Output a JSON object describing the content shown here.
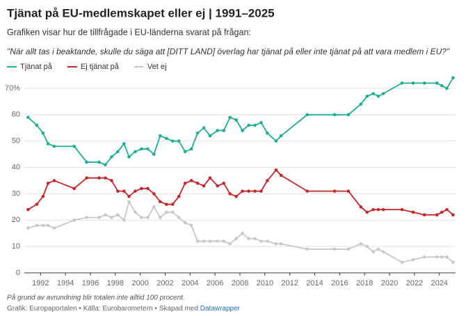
{
  "chart_data": {
    "type": "line",
    "title": "Tjänat på EU-medlemskapet eller ej | 1991–2025",
    "subtitle": "Grafiken visar hur de tillfrågade i EU-länderna svarat på frågan:",
    "question": "\"När allt tas i beaktande, skulle du säga att [DITT LAND] överlag har tjänat på eller inte tjänat på att vara medlem i EU?\"",
    "note": "På grund av avrundning blir totalen inte alltid 100 procent.",
    "source": "Grafik: Europaportalen • Källa: Eurobarometern • Skapad med",
    "source_link": "Datawrapper",
    "x": [
      1991.0,
      1991.7,
      1992.2,
      1992.6,
      1993.1,
      1994.7,
      1995.7,
      1996.7,
      1997.2,
      1997.7,
      1998.2,
      1998.7,
      1999.1,
      1999.6,
      2000.1,
      2000.6,
      2001.1,
      2001.6,
      2002.1,
      2002.6,
      2003.1,
      2003.6,
      2004.1,
      2004.6,
      2005.1,
      2005.6,
      2006.2,
      2006.7,
      2007.2,
      2007.7,
      2008.2,
      2008.7,
      2009.2,
      2009.7,
      2010.2,
      2010.9,
      2011.3,
      2013.4,
      2015.6,
      2016.7,
      2017.7,
      2018.2,
      2018.7,
      2019.1,
      2019.5,
      2021.0,
      2021.9,
      2022.8,
      2023.8,
      2024.2,
      2024.6,
      2025.1
    ],
    "series": [
      {
        "name": "Tjänat på",
        "color": "#1fae90",
        "values": [
          59,
          56,
          53,
          49,
          48,
          48,
          42,
          42,
          41,
          44,
          46,
          49,
          44,
          46,
          47,
          47,
          45,
          52,
          51,
          50,
          50,
          46,
          47,
          53,
          55,
          52,
          54,
          54,
          59,
          58,
          54,
          56,
          56,
          57,
          53,
          50,
          52,
          60,
          60,
          60,
          64,
          67,
          68,
          67,
          68,
          72,
          72,
          72,
          72,
          71,
          70,
          74
        ]
      },
      {
        "name": "Ej tjänat på",
        "color": "#c1272d",
        "values": [
          24,
          26,
          29,
          34,
          35,
          32,
          36,
          36,
          36,
          35,
          31,
          31,
          29,
          31,
          32,
          32,
          30,
          27,
          26,
          26,
          29,
          34,
          35,
          34,
          33,
          36,
          33,
          34,
          30,
          29,
          31,
          31,
          31,
          31,
          35,
          39,
          37,
          31,
          31,
          31,
          25,
          23,
          24,
          24,
          24,
          24,
          23,
          22,
          22,
          23,
          24,
          22
        ]
      },
      {
        "name": "Vet ej",
        "color": "#c8c8c8",
        "values": [
          17,
          18,
          18,
          18,
          17,
          20,
          21,
          21,
          22,
          21,
          22,
          20,
          27,
          23,
          21,
          21,
          25,
          21,
          23,
          23,
          21,
          19,
          18,
          12,
          12,
          12,
          12,
          12,
          11,
          13,
          15,
          13,
          13,
          12,
          12,
          11,
          11,
          9,
          9,
          9,
          11,
          10,
          8,
          9,
          8,
          4,
          5,
          6,
          6,
          6,
          6,
          4
        ]
      }
    ],
    "xlim": [
      1990.7,
      2025.3
    ],
    "xticks": [
      1992,
      1994,
      1996,
      1998,
      2000,
      2002,
      2004,
      2006,
      2008,
      2010,
      2012,
      2014,
      2016,
      2018,
      2020,
      2022,
      2024
    ],
    "ylim": [
      0,
      75
    ],
    "yticks": [
      0,
      10,
      20,
      30,
      40,
      50,
      60,
      {
        "value": 70,
        "label": "70%"
      }
    ],
    "grid": true
  }
}
